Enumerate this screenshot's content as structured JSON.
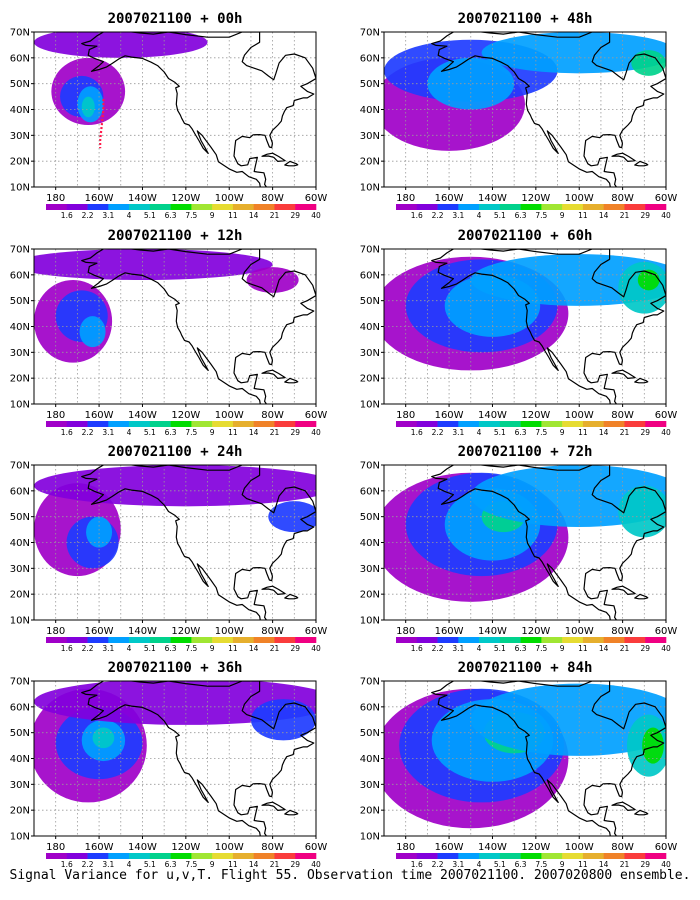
{
  "figure": {
    "caption": "Signal Variance for u,v,T. Flight 55. Observation time 2007021100. 2007020800 ensemble."
  },
  "map": {
    "lat_ticks": [
      "10N",
      "20N",
      "30N",
      "40N",
      "50N",
      "60N",
      "70N"
    ],
    "lon_ticks": [
      "180",
      "160W",
      "140W",
      "120W",
      "100W",
      "80W",
      "60W"
    ],
    "extent": {
      "lon_min": -190,
      "lon_max": -60,
      "lat_min": 10,
      "lat_max": 70
    },
    "grid": "dotted"
  },
  "colorbar": {
    "labels": [
      "1.6",
      "2.2",
      "3.1",
      "4",
      "5.1",
      "6.3",
      "7.5",
      "9",
      "11",
      "14",
      "21",
      "29",
      "40"
    ],
    "colors": [
      "#a000c8",
      "#8200dc",
      "#1e3cff",
      "#00a0ff",
      "#00c8c8",
      "#00d28c",
      "#00dc00",
      "#a0e632",
      "#e6dc32",
      "#e6af2d",
      "#f08228",
      "#fa3c3c",
      "#f00082"
    ]
  },
  "panels": [
    {
      "title": "2007021100 + 00h",
      "lead": "00h"
    },
    {
      "title": "2007021100 + 48h",
      "lead": "48h"
    },
    {
      "title": "2007021100 + 12h",
      "lead": "12h"
    },
    {
      "title": "2007021100 + 60h",
      "lead": "60h"
    },
    {
      "title": "2007021100 + 24h",
      "lead": "24h"
    },
    {
      "title": "2007021100 + 72h",
      "lead": "72h"
    },
    {
      "title": "2007021100 + 36h",
      "lead": "36h"
    },
    {
      "title": "2007021100 + 84h",
      "lead": "84h"
    }
  ]
}
